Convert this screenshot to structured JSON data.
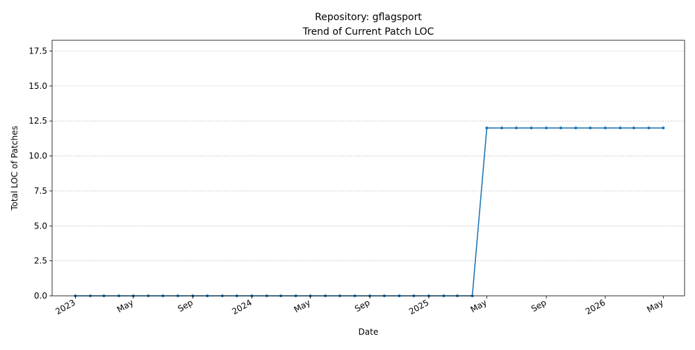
{
  "chart_data": {
    "type": "line",
    "title": "Repository: gflagsport",
    "subtitle": "Trend of Current Patch LOC",
    "xlabel": "Date",
    "ylabel": "Total LOC of Patches",
    "ylim": [
      0,
      18.27
    ],
    "xlim": [
      "2022-11-14",
      "2026-06-14"
    ],
    "grid": "y-dashed",
    "color": "#1f77b4",
    "yticks": [
      {
        "value": 0,
        "label": "0.0"
      },
      {
        "value": 2.5,
        "label": "2.5"
      },
      {
        "value": 5,
        "label": "5.0"
      },
      {
        "value": 7.5,
        "label": "7.5"
      },
      {
        "value": 10,
        "label": "10.0"
      },
      {
        "value": 12.5,
        "label": "12.5"
      },
      {
        "value": 15,
        "label": "15.0"
      },
      {
        "value": 17.5,
        "label": "17.5"
      }
    ],
    "xticks": [
      {
        "date": "2023-01-01",
        "label": "2023"
      },
      {
        "date": "2023-05-01",
        "label": "May"
      },
      {
        "date": "2023-09-01",
        "label": "Sep"
      },
      {
        "date": "2024-01-01",
        "label": "2024"
      },
      {
        "date": "2024-05-01",
        "label": "May"
      },
      {
        "date": "2024-09-01",
        "label": "Sep"
      },
      {
        "date": "2025-01-01",
        "label": "2025"
      },
      {
        "date": "2025-05-01",
        "label": "May"
      },
      {
        "date": "2025-09-01",
        "label": "Sep"
      },
      {
        "date": "2026-01-01",
        "label": "2026"
      },
      {
        "date": "2026-05-01",
        "label": "May"
      }
    ],
    "series": [
      {
        "x": [
          "2023-01-01",
          "2023-02-01",
          "2023-03-01",
          "2023-04-01",
          "2023-05-01",
          "2023-06-01",
          "2023-07-01",
          "2023-08-01",
          "2023-09-01",
          "2023-10-01",
          "2023-11-01",
          "2023-12-01",
          "2024-01-01",
          "2024-02-01",
          "2024-03-01",
          "2024-04-01",
          "2024-05-01",
          "2024-06-01",
          "2024-07-01",
          "2024-08-01",
          "2024-09-01",
          "2024-10-01",
          "2024-11-01",
          "2024-12-01",
          "2025-01-01",
          "2025-02-01",
          "2025-03-01",
          "2025-04-01",
          "2025-05-01",
          "2025-06-01",
          "2025-07-01",
          "2025-08-01",
          "2025-09-01",
          "2025-10-01",
          "2025-11-01",
          "2025-12-01",
          "2026-01-01",
          "2026-02-01",
          "2026-03-01",
          "2026-04-01",
          "2026-05-01"
        ],
        "values": [
          0,
          0,
          0,
          0,
          0,
          0,
          0,
          0,
          0,
          0,
          0,
          0,
          0,
          0,
          0,
          0,
          0,
          0,
          0,
          0,
          0,
          0,
          0,
          0,
          0,
          0,
          0,
          0,
          12,
          12,
          12,
          12,
          12,
          12,
          12,
          12,
          12,
          12,
          12,
          12,
          12
        ]
      }
    ]
  }
}
